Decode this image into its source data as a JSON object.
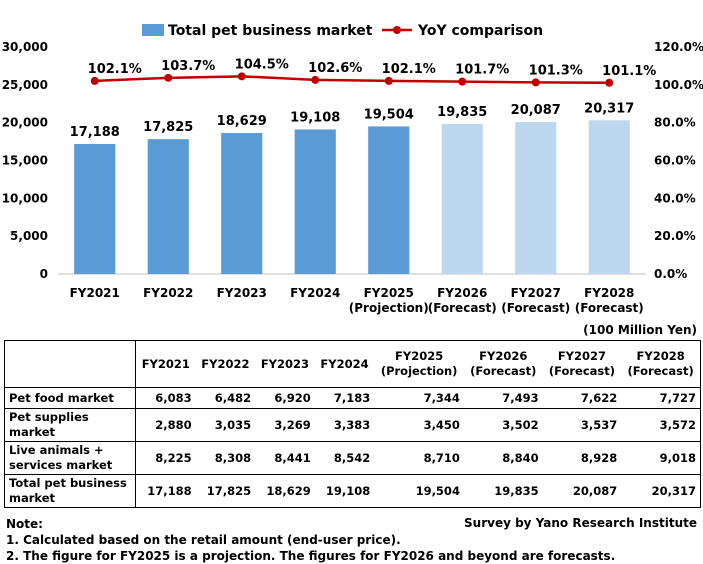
{
  "chart_data": {
    "type": "bar",
    "categories": [
      "FY2021",
      "FY2022",
      "FY2023",
      "FY2024",
      "FY2025\n(Projection)",
      "FY2026\n(Forecast)",
      "FY2027\n(Forecast)",
      "FY2028\n(Forecast)"
    ],
    "series": [
      {
        "name": "Total pet business market",
        "kind": "bar",
        "values": [
          17188,
          17825,
          18629,
          19108,
          19504,
          19835,
          20087,
          20317
        ],
        "value_labels": [
          "17,188",
          "17,825",
          "18,629",
          "19,108",
          "19,504",
          "19,835",
          "20,087",
          "20,317"
        ],
        "color": "#5b9bd5",
        "forecast_color": "#bdd7ee",
        "forecast_from_index": 5
      },
      {
        "name": "YoY comparison",
        "kind": "line",
        "axis": "right",
        "values": [
          102.1,
          103.7,
          104.5,
          102.6,
          102.1,
          101.7,
          101.3,
          101.1
        ],
        "value_labels": [
          "102.1%",
          "103.7%",
          "104.5%",
          "102.6%",
          "102.1%",
          "101.7%",
          "101.3%",
          "101.1%"
        ],
        "color": "#c00000"
      }
    ],
    "ylim": [
      0,
      30000
    ],
    "yticks": [
      "0",
      "5,000",
      "10,000",
      "15,000",
      "20,000",
      "25,000",
      "30,000"
    ],
    "y2lim": [
      0,
      120
    ],
    "y2ticks": [
      "0.0%",
      "20.0%",
      "40.0%",
      "60.0%",
      "80.0%",
      "100.0%",
      "120.0%"
    ],
    "legend": "top",
    "grid": false
  },
  "unit_label": "(100 Million Yen)",
  "table": {
    "headers": [
      "FY2021",
      "FY2022",
      "FY2023",
      "FY2024",
      "FY2025\n(Projection)",
      "FY2026\n(Forecast)",
      "FY2027\n(Forecast)",
      "FY2028\n(Forecast)"
    ],
    "rows": [
      {
        "label": "Pet food market",
        "values": [
          "6,083",
          "6,482",
          "6,920",
          "7,183",
          "7,344",
          "7,493",
          "7,622",
          "7,727"
        ]
      },
      {
        "label": "Pet supplies\nmarket",
        "values": [
          "2,880",
          "3,035",
          "3,269",
          "3,383",
          "3,450",
          "3,502",
          "3,537",
          "3,572"
        ]
      },
      {
        "label": "Live animals +\nservices market",
        "values": [
          "8,225",
          "8,308",
          "8,441",
          "8,542",
          "8,710",
          "8,840",
          "8,928",
          "9,018"
        ]
      },
      {
        "label": "Total pet business\nmarket",
        "values": [
          "17,188",
          "17,825",
          "18,629",
          "19,108",
          "19,504",
          "19,835",
          "20,087",
          "20,317"
        ]
      }
    ]
  },
  "notes": {
    "title": "Note:",
    "lines": [
      "1. Calculated based on the retail amount (end-user price).",
      "2. The figure for FY2025 is a projection. The figures for FY2026 and beyond are forecasts."
    ]
  },
  "source": "Survey by Yano Research Institute"
}
